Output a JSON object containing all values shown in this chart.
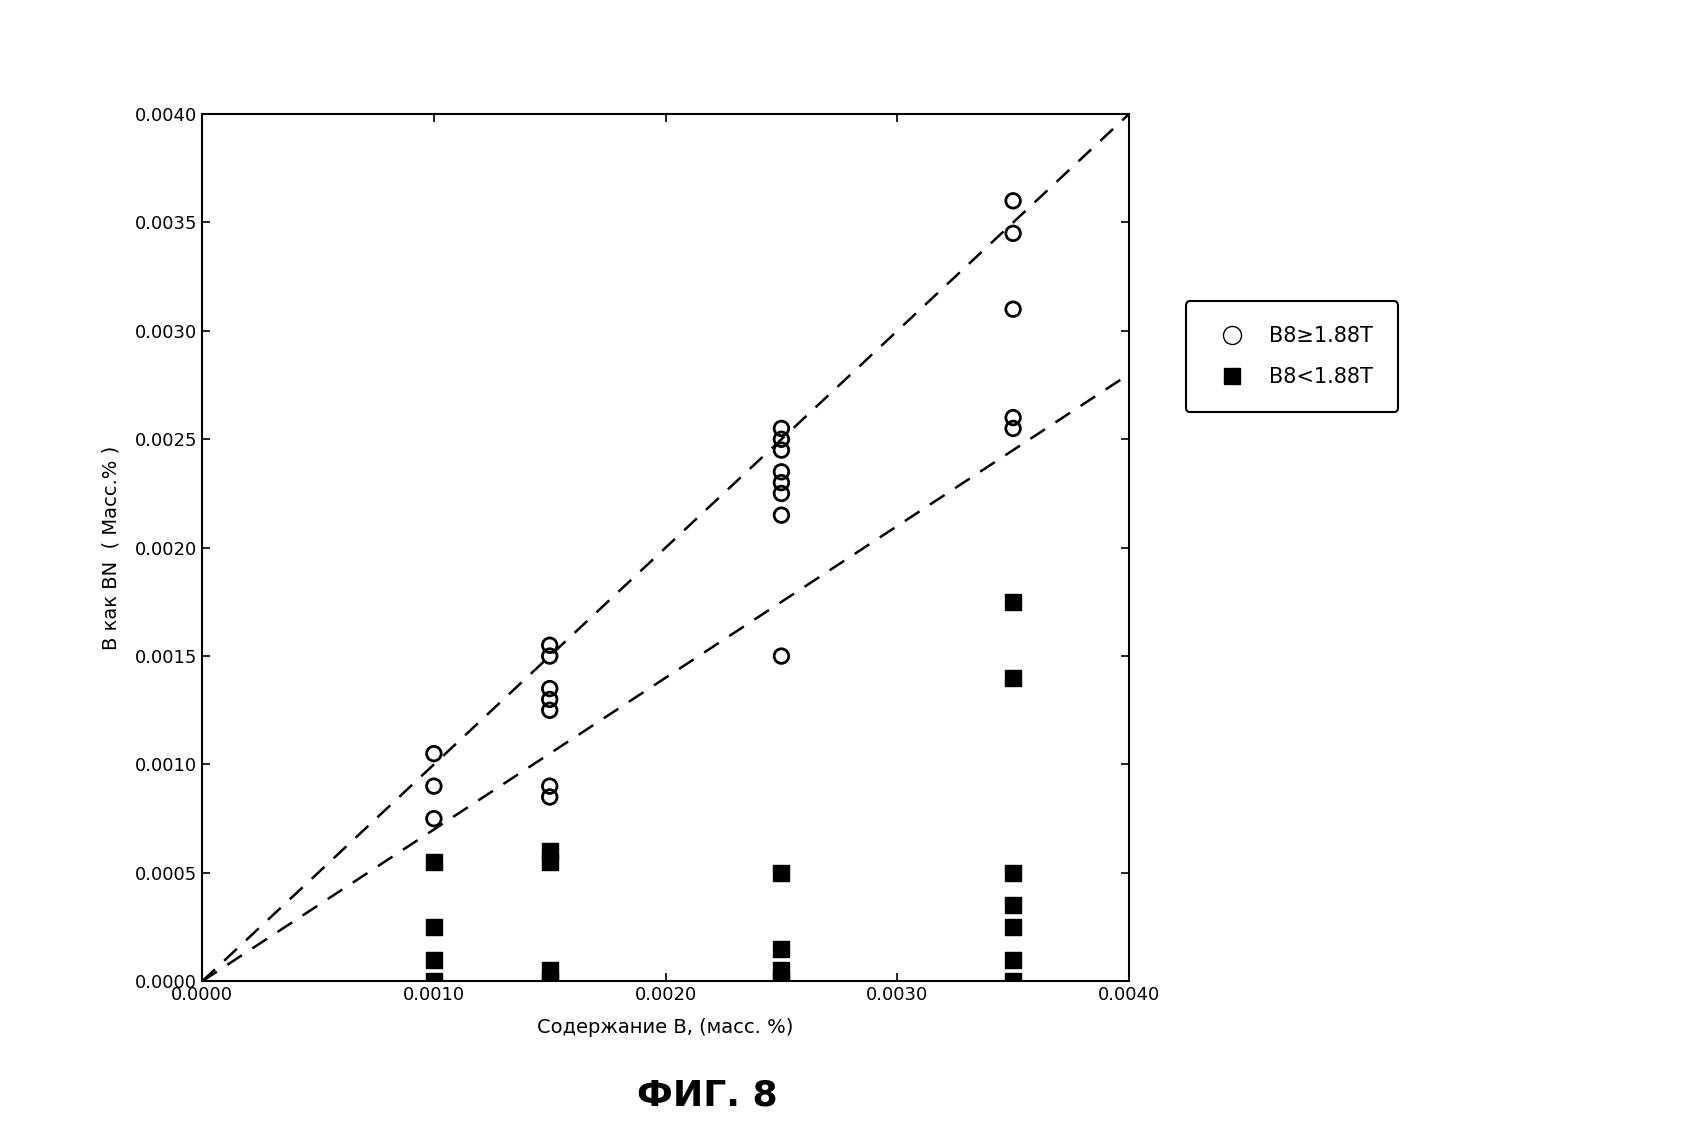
{
  "open_circles_x": [
    0.001,
    0.001,
    0.001,
    0.0015,
    0.0015,
    0.0015,
    0.0015,
    0.0015,
    0.0015,
    0.0015,
    0.0025,
    0.0025,
    0.0025,
    0.0025,
    0.0025,
    0.0025,
    0.0025,
    0.0025,
    0.0035,
    0.0035,
    0.0035,
    0.0035,
    0.0035
  ],
  "open_circles_y": [
    0.00105,
    0.0009,
    0.00075,
    0.00155,
    0.0015,
    0.00135,
    0.0013,
    0.00125,
    0.0009,
    0.00085,
    0.00255,
    0.0025,
    0.00245,
    0.00235,
    0.0023,
    0.00225,
    0.00215,
    0.0015,
    0.0036,
    0.00345,
    0.0031,
    0.0026,
    0.00255
  ],
  "filled_squares_x": [
    0.001,
    0.001,
    0.001,
    0.001,
    0.0015,
    0.0015,
    0.0015,
    0.0015,
    0.0025,
    0.0025,
    0.0025,
    0.0025,
    0.0035,
    0.0035,
    0.0035,
    0.0035,
    0.0035,
    0.0035,
    0.0035
  ],
  "filled_squares_y": [
    0.00055,
    0.00025,
    0.0001,
    0.0,
    0.0006,
    0.00055,
    5e-05,
    0.0,
    0.0005,
    0.00015,
    5e-05,
    0.0,
    0.00175,
    0.0014,
    0.0005,
    0.00035,
    0.00025,
    0.0001,
    0.0
  ],
  "dashed_line1_x": [
    0.0,
    0.004
  ],
  "dashed_line1_y": [
    0.0,
    0.004
  ],
  "dashed_line2_x": [
    0.0,
    0.004
  ],
  "dashed_line2_y": [
    0.0,
    0.0028
  ],
  "xlabel": "Содержание B, (масс. %)",
  "ylabel": "B как BN  ( Масс.% )",
  "legend1": "B8≥1.88T",
  "legend2": "B8<1.88T",
  "caption": "ФИГ. 8",
  "xlim": [
    0.0,
    0.004
  ],
  "ylim": [
    0.0,
    0.004
  ],
  "xticks": [
    0.0,
    0.001,
    0.002,
    0.003,
    0.004
  ],
  "yticks": [
    0.0,
    0.0005,
    0.001,
    0.0015,
    0.002,
    0.0025,
    0.003,
    0.0035,
    0.004
  ],
  "background_color": "#ffffff",
  "fig_width": 16.85,
  "fig_height": 11.41,
  "dpi": 100
}
